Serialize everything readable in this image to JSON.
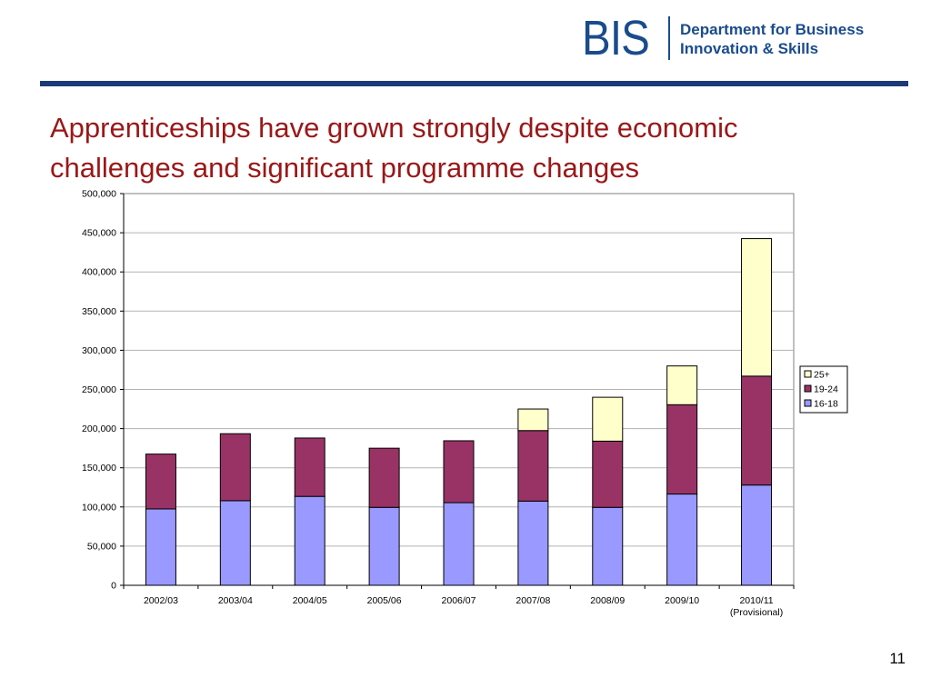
{
  "header": {
    "logo_letters": "BIS",
    "department_line1": "Department for Business",
    "department_line2": "Innovation & Skills"
  },
  "slide": {
    "title": "Apprenticeships have grown strongly despite economic challenges and significant programme changes",
    "page_number": "11"
  },
  "colors": {
    "brand_blue": "#1a4c8c",
    "rule_blue": "#1c3a78",
    "title_red": "#9b1717"
  },
  "chart_data": {
    "type": "bar",
    "stacked": true,
    "categories": [
      "2002/03",
      "2003/04",
      "2004/05",
      "2005/06",
      "2006/07",
      "2007/08",
      "2008/09",
      "2009/10",
      "2010/11"
    ],
    "category_sublabels": [
      "",
      "",
      "",
      "",
      "",
      "",
      "",
      "",
      "(Provisional)"
    ],
    "series": [
      {
        "name": "16-18",
        "color": "#9999ff",
        "values": [
          97500,
          108000,
          113500,
          99500,
          105500,
          107500,
          99500,
          116500,
          128000
        ]
      },
      {
        "name": "19-24",
        "color": "#993366",
        "values": [
          70000,
          85500,
          74500,
          75500,
          79000,
          90000,
          84500,
          114000,
          139000
        ]
      },
      {
        "name": "25+",
        "color": "#ffffcc",
        "values": [
          0,
          0,
          0,
          0,
          0,
          27500,
          56000,
          49500,
          175500
        ]
      }
    ],
    "legend_order": [
      "25+",
      "19-24",
      "16-18"
    ],
    "legend_position": "right",
    "ylim": [
      0,
      500000
    ],
    "yticks": [
      0,
      50000,
      100000,
      150000,
      200000,
      250000,
      300000,
      350000,
      400000,
      450000,
      500000
    ],
    "ytick_labels": [
      "0",
      "50,000",
      "100,000",
      "150,000",
      "200,000",
      "250,000",
      "300,000",
      "350,000",
      "400,000",
      "450,000",
      "500,000"
    ],
    "grid": "horizontal",
    "title": "",
    "xlabel": "",
    "ylabel": ""
  }
}
